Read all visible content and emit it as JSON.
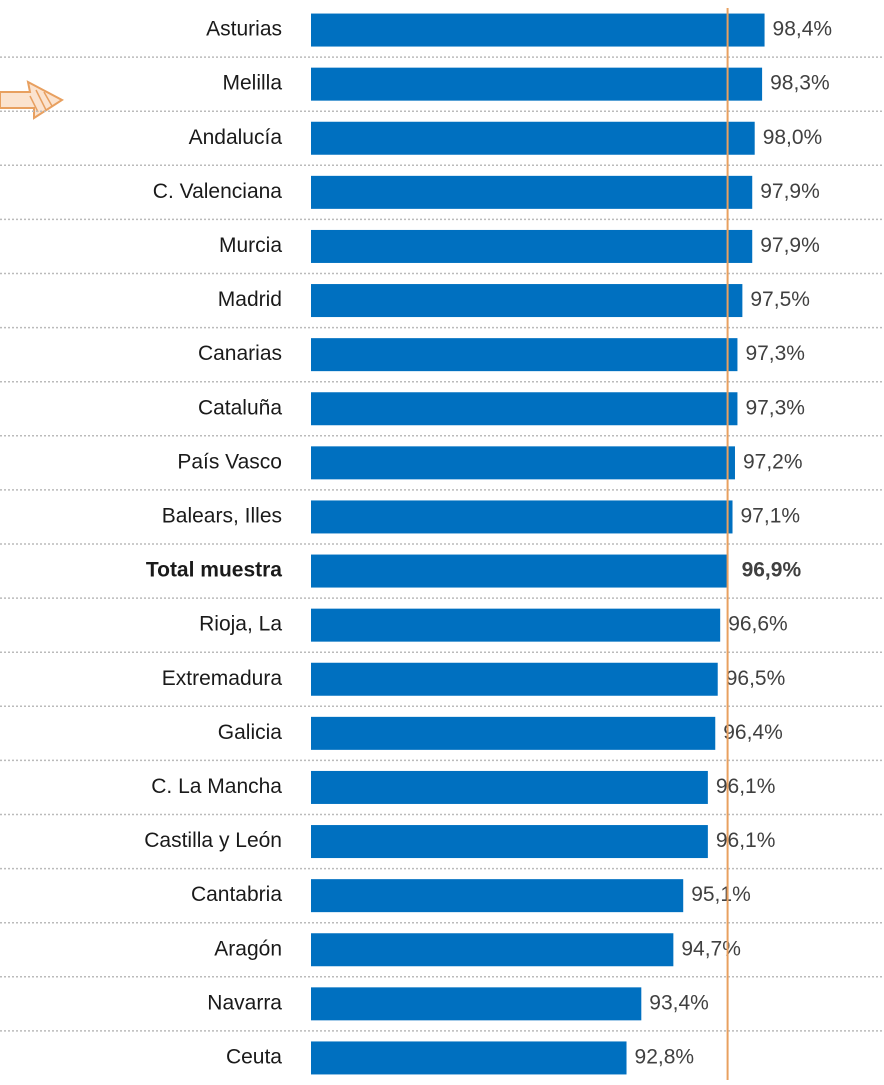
{
  "chart_data": {
    "type": "bar",
    "orientation": "horizontal",
    "categories": [
      "Asturias",
      "Melilla",
      "Andalucía",
      "C. Valenciana",
      "Murcia",
      "Madrid",
      "Canarias",
      "Cataluña",
      "País Vasco",
      "Balears, Illes",
      "Total muestra",
      "Rioja, La",
      "Extremadura",
      "Galicia",
      "C. La Mancha",
      "Castilla y León",
      "Cantabria",
      "Aragón",
      "Navarra",
      "Ceuta"
    ],
    "values": [
      98.4,
      98.3,
      98.0,
      97.9,
      97.9,
      97.5,
      97.3,
      97.3,
      97.2,
      97.1,
      96.9,
      96.6,
      96.5,
      96.4,
      96.1,
      96.1,
      95.1,
      94.7,
      93.4,
      92.8
    ],
    "value_labels": [
      "98,4%",
      "98,3%",
      "98,0%",
      "97,9%",
      "97,9%",
      "97,5%",
      "97,3%",
      "97,3%",
      "97,2%",
      "97,1%",
      "96,9%",
      "96,6%",
      "96,5%",
      "96,4%",
      "96,1%",
      "96,1%",
      "95,1%",
      "94,7%",
      "93,4%",
      "92,8%"
    ],
    "color": "#0070c0",
    "reference_color": "#e8a060",
    "highlight_category": "Total muestra",
    "xlim": [
      80,
      100
    ]
  }
}
